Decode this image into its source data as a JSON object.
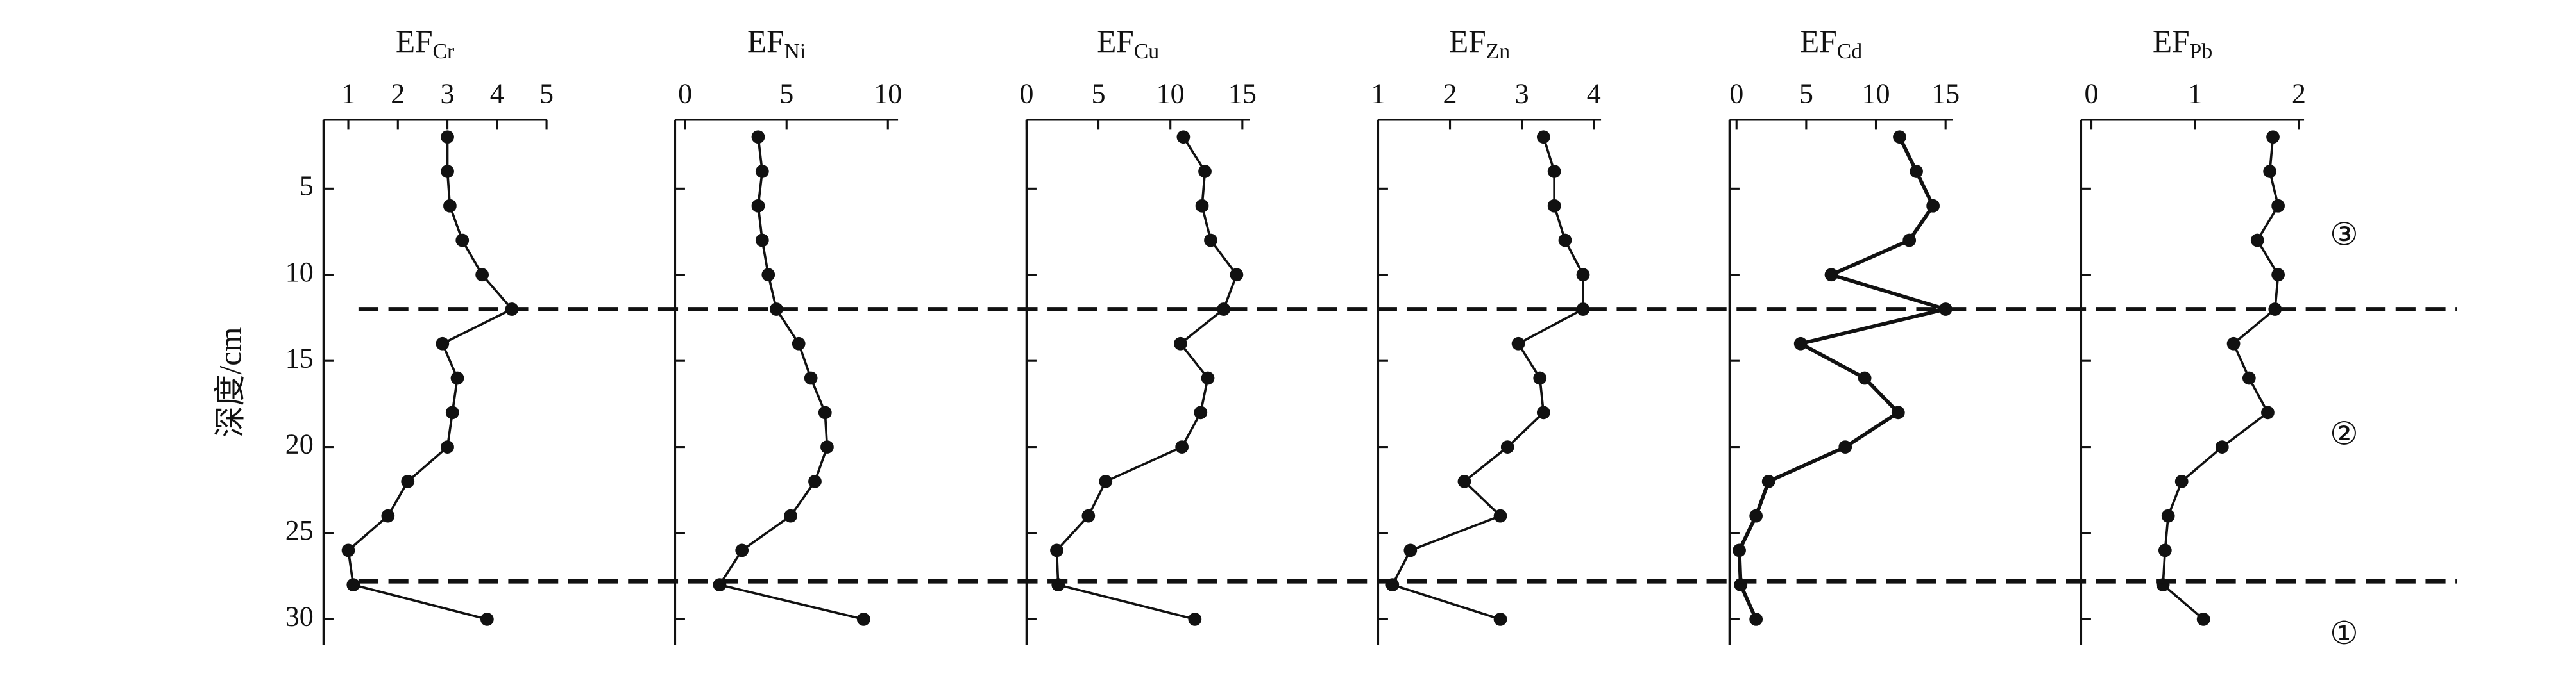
{
  "chart_data": [
    {
      "type": "line",
      "title": "EF",
      "title_sub": "Cr",
      "ylabel": "深度/cm",
      "y": [
        2,
        4,
        6,
        8,
        10,
        12,
        14,
        16,
        18,
        20,
        22,
        24,
        26,
        28,
        30
      ],
      "values": [
        3.0,
        3.0,
        3.05,
        3.3,
        3.7,
        4.3,
        2.9,
        3.2,
        3.1,
        3.0,
        2.2,
        1.8,
        1.0,
        1.1,
        3.8
      ],
      "xlim": [
        0.5,
        5
      ],
      "xticks": [
        1,
        2,
        3,
        4,
        5
      ],
      "ylim": [
        1,
        31.5
      ],
      "yticks": [
        5,
        10,
        15,
        20,
        25,
        30
      ],
      "color": "#111111"
    },
    {
      "type": "line",
      "title": "EF",
      "title_sub": "Ni",
      "y": [
        2,
        4,
        6,
        8,
        10,
        12,
        14,
        16,
        18,
        20,
        22,
        24,
        26,
        28,
        30
      ],
      "values": [
        3.6,
        3.8,
        3.6,
        3.8,
        4.1,
        4.5,
        5.6,
        6.2,
        6.9,
        7.0,
        6.4,
        5.2,
        2.8,
        1.7,
        8.8
      ],
      "xlim": [
        -0.5,
        10.5
      ],
      "xticks": [
        0,
        5,
        10
      ],
      "ylim": [
        1,
        31.5
      ],
      "yticks": [
        5,
        10,
        15,
        20,
        25,
        30
      ],
      "color": "#111111"
    },
    {
      "type": "line",
      "title": "EF",
      "title_sub": "Cu",
      "y": [
        2,
        4,
        6,
        8,
        10,
        12,
        14,
        16,
        18,
        20,
        22,
        24,
        26,
        28,
        30
      ],
      "values": [
        10.9,
        12.4,
        12.2,
        12.8,
        14.6,
        13.7,
        10.7,
        12.6,
        12.1,
        10.8,
        5.5,
        4.3,
        2.1,
        2.2,
        11.7
      ],
      "xlim": [
        0,
        15.5
      ],
      "xticks": [
        0,
        5,
        10,
        15
      ],
      "ylim": [
        1,
        31.5
      ],
      "yticks": [
        5,
        10,
        15,
        20,
        25,
        30
      ],
      "color": "#111111"
    },
    {
      "type": "line",
      "title": "EF",
      "title_sub": "Zn",
      "y": [
        2,
        4,
        6,
        8,
        10,
        12,
        14,
        16,
        18,
        20,
        22,
        24,
        26,
        28,
        30
      ],
      "values": [
        3.3,
        3.45,
        3.45,
        3.6,
        3.85,
        3.85,
        2.95,
        3.25,
        3.3,
        2.8,
        2.2,
        2.7,
        1.45,
        1.2,
        2.7
      ],
      "xlim": [
        1,
        4.1
      ],
      "xticks": [
        1,
        2,
        3,
        4
      ],
      "ylim": [
        1,
        31.5
      ],
      "yticks": [
        5,
        10,
        15,
        20,
        25,
        30
      ],
      "color": "#111111"
    },
    {
      "type": "line",
      "title": "EF",
      "title_sub": "Cd",
      "y": [
        2,
        4,
        6,
        8,
        10,
        12,
        14,
        16,
        18,
        20,
        22,
        24,
        26,
        28,
        30
      ],
      "values": [
        11.7,
        12.9,
        14.1,
        12.4,
        6.8,
        15,
        4.6,
        9.2,
        11.6,
        7.8,
        2.3,
        1.4,
        0.2,
        0.3,
        1.4
      ],
      "xlim": [
        -0.5,
        15.5
      ],
      "xticks": [
        0,
        5,
        10,
        15
      ],
      "ylim": [
        1,
        31.5
      ],
      "yticks": [
        5,
        10,
        15,
        20,
        25,
        30
      ],
      "color": "#111111"
    },
    {
      "type": "line",
      "title": "EF",
      "title_sub": "Pb",
      "y": [
        2,
        4,
        6,
        8,
        10,
        12,
        14,
        16,
        18,
        20,
        22,
        24,
        26,
        28,
        30
      ],
      "values": [
        1.75,
        1.72,
        1.8,
        1.6,
        1.8,
        1.77,
        1.37,
        1.52,
        1.7,
        1.26,
        0.87,
        0.74,
        0.71,
        0.69,
        1.08
      ],
      "xlim": [
        -0.1,
        2.05
      ],
      "xticks": [
        0,
        1,
        2
      ],
      "ylim": [
        1,
        31.5
      ],
      "yticks": [
        5,
        10,
        15,
        20,
        25,
        30
      ],
      "color": "#111111"
    }
  ],
  "boundaries": [
    12,
    27.8
  ],
  "zone_labels": [
    "③",
    "②",
    "①"
  ]
}
